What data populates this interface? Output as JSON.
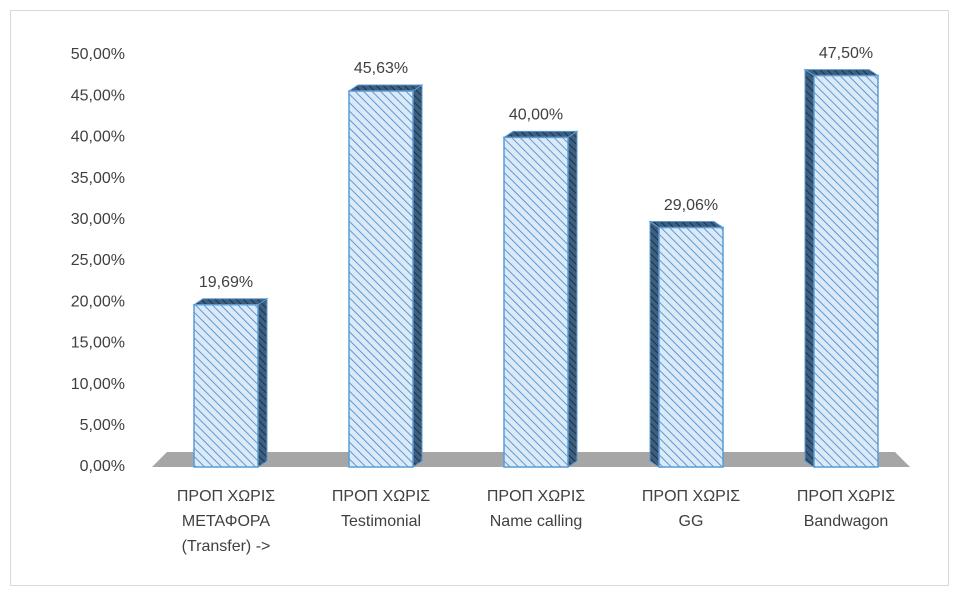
{
  "chart_data": {
    "type": "bar3d",
    "categories": [
      [
        "ΠΡΟΠ ΧΩΡΙΣ",
        "ΜΕΤΑΦΟΡΑ",
        "(Transfer) ->"
      ],
      [
        "ΠΡΟΠ ΧΩΡΙΣ",
        "Testimonial"
      ],
      [
        "ΠΡΟΠ ΧΩΡΙΣ",
        "Name calling"
      ],
      [
        "ΠΡΟΠ ΧΩΡΙΣ",
        "GG"
      ],
      [
        "ΠΡΟΠ ΧΩΡΙΣ",
        "Bandwagon"
      ]
    ],
    "values": [
      19.69,
      45.63,
      40,
      29.06,
      47.5
    ],
    "value_labels": [
      "19,69%",
      "45,63%",
      "40,00%",
      "29,06%",
      "47,50%"
    ],
    "color": "#5b9bd5",
    "ylim": [
      0,
      50
    ],
    "yticks": [
      {
        "value": 0,
        "label": "0,00%"
      },
      {
        "value": 5,
        "label": "5,00%"
      },
      {
        "value": 10,
        "label": "10,00%"
      },
      {
        "value": 15,
        "label": "15,00%"
      },
      {
        "value": 20,
        "label": "20,00%"
      },
      {
        "value": 25,
        "label": "25,00%"
      },
      {
        "value": 30,
        "label": "30,00%"
      },
      {
        "value": 35,
        "label": "35,00%"
      },
      {
        "value": 40,
        "label": "40,00%"
      },
      {
        "value": 45,
        "label": "45,00%"
      },
      {
        "value": 50,
        "label": "50,00%"
      }
    ],
    "grid": false
  }
}
